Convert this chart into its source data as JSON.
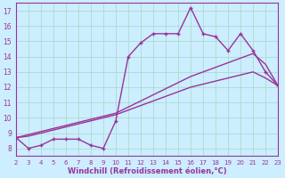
{
  "title": "",
  "xlabel": "Windchill (Refroidissement éolien,°C)",
  "ylabel": "",
  "bg_color": "#cceeff",
  "line_color": "#993399",
  "grid_color": "#aaddcc",
  "axis_color": "#993399",
  "xlim": [
    2,
    23
  ],
  "ylim": [
    7.5,
    17.5
  ],
  "xticks": [
    2,
    3,
    4,
    5,
    6,
    7,
    8,
    9,
    10,
    11,
    12,
    13,
    14,
    15,
    16,
    17,
    18,
    19,
    20,
    21,
    22,
    23
  ],
  "yticks": [
    8,
    9,
    10,
    11,
    12,
    13,
    14,
    15,
    16,
    17
  ],
  "series1": {
    "x": [
      2,
      3,
      4,
      5,
      6,
      7,
      8,
      9,
      10,
      11,
      12,
      13,
      14,
      15,
      16,
      17,
      18,
      19,
      20,
      21,
      22,
      23
    ],
    "y": [
      8.7,
      8.0,
      8.2,
      8.6,
      8.6,
      8.6,
      8.2,
      8.0,
      9.8,
      14.0,
      14.9,
      15.5,
      15.5,
      15.5,
      17.2,
      15.5,
      15.3,
      14.4,
      15.5,
      14.4,
      13.0,
      12.1
    ]
  },
  "series2": {
    "x": [
      2,
      3,
      4,
      5,
      6,
      7,
      8,
      9,
      10,
      11,
      12,
      13,
      14,
      15,
      16,
      17,
      18,
      19,
      20,
      21,
      22,
      23
    ],
    "y": [
      8.7,
      8.8,
      9.0,
      9.2,
      9.4,
      9.6,
      9.8,
      10.0,
      10.2,
      10.5,
      10.8,
      11.1,
      11.4,
      11.7,
      12.0,
      12.2,
      12.4,
      12.6,
      12.8,
      13.0,
      12.6,
      12.1
    ]
  },
  "series3": {
    "x": [
      2,
      3,
      4,
      5,
      6,
      7,
      8,
      9,
      10,
      11,
      12,
      13,
      14,
      15,
      16,
      17,
      18,
      19,
      20,
      21,
      22,
      23
    ],
    "y": [
      8.7,
      8.9,
      9.1,
      9.3,
      9.5,
      9.7,
      9.9,
      10.1,
      10.3,
      10.7,
      11.1,
      11.5,
      11.9,
      12.3,
      12.7,
      13.0,
      13.3,
      13.6,
      13.9,
      14.2,
      13.5,
      12.1
    ]
  }
}
